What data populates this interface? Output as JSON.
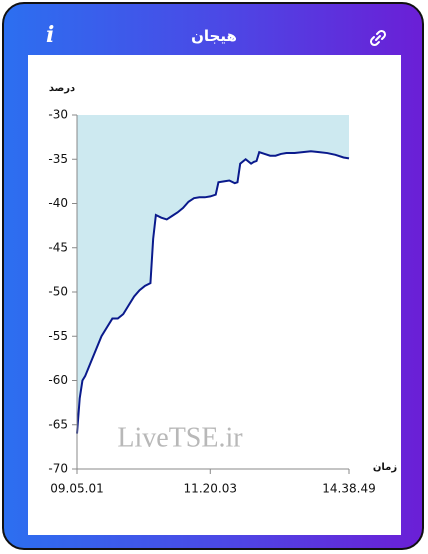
{
  "header": {
    "title": "هیجان",
    "info_icon": "i"
  },
  "watermark": "LiveTSE.ir",
  "chart_data": {
    "type": "area",
    "y_label": "درصد",
    "x_label": "زمان",
    "color": "#0a1a8c",
    "fill_color": "#cde9f0",
    "xlim": [
      0,
      100
    ],
    "xticks": [
      {
        "value": 0,
        "label": "09.05.01"
      },
      {
        "value": 49,
        "label": "11.20.03"
      },
      {
        "value": 100,
        "label": "14.38.49"
      }
    ],
    "ylim": [
      -70,
      -30
    ],
    "yticks": [
      -30,
      -35,
      -40,
      -45,
      -50,
      -55,
      -60,
      -65,
      -70
    ],
    "x": [
      0,
      1,
      2,
      3,
      5,
      7,
      9,
      11,
      13,
      15,
      17,
      19,
      21,
      23,
      25,
      27,
      28,
      29,
      31,
      33,
      35,
      37,
      39,
      41,
      43,
      45,
      47,
      49,
      51,
      52,
      54,
      56,
      58,
      59,
      60,
      62,
      64,
      65,
      66,
      67,
      69,
      71,
      73,
      75,
      77,
      80,
      83,
      86,
      89,
      92,
      95,
      98,
      100
    ],
    "values": [
      -66,
      -62,
      -60,
      -59.5,
      -58,
      -56.5,
      -55,
      -54,
      -53,
      -53,
      -52.5,
      -51.5,
      -50.5,
      -49.8,
      -49.3,
      -49,
      -44,
      -41.3,
      -41.6,
      -41.8,
      -41.4,
      -41,
      -40.5,
      -39.8,
      -39.4,
      -39.3,
      -39.3,
      -39.2,
      -39,
      -37.6,
      -37.5,
      -37.4,
      -37.7,
      -37.6,
      -35.5,
      -35,
      -35.5,
      -35.3,
      -35.2,
      -34.2,
      -34.4,
      -34.6,
      -34.6,
      -34.4,
      -34.3,
      -34.3,
      -34.2,
      -34.1,
      -34.2,
      -34.3,
      -34.5,
      -34.8,
      -34.9
    ]
  }
}
